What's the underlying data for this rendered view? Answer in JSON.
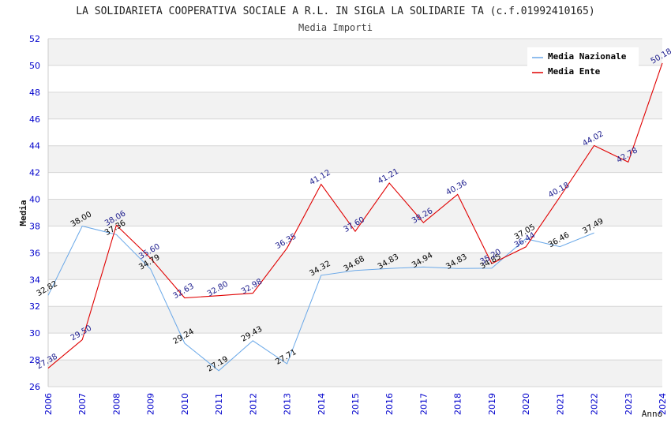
{
  "chart_data": {
    "type": "line",
    "title": "LA SOLIDARIETA COOPERATIVA SOCIALE A R.L. IN SIGLA LA SOLIDARIE TA (c.f.01992410165)",
    "subtitle": "Media Importi",
    "xlabel": "Anno",
    "ylabel": "Media",
    "ylim": [
      26,
      52
    ],
    "yticks": [
      26,
      28,
      30,
      32,
      34,
      36,
      38,
      40,
      42,
      44,
      46,
      48,
      50,
      52
    ],
    "categories": [
      "2006",
      "2007",
      "2008",
      "2009",
      "2010",
      "2011",
      "2012",
      "2013",
      "2014",
      "2015",
      "2016",
      "2017",
      "2018",
      "2019",
      "2020",
      "2021",
      "2022",
      "2023",
      "2024"
    ],
    "legend_position": "top-right",
    "series": [
      {
        "name": "Media Nazionale",
        "color": "#6aa8e8",
        "values": [
          32.82,
          38.0,
          37.36,
          34.79,
          29.24,
          27.19,
          29.43,
          27.71,
          34.32,
          34.68,
          34.83,
          34.94,
          34.83,
          34.85,
          37.05,
          36.46,
          37.49,
          null,
          null
        ],
        "labels": [
          "32.82",
          "38.00",
          "37.36",
          "34.79",
          "29.24",
          "27.19",
          "29.43",
          "27.71",
          "34.32",
          "34.68",
          "34.83",
          "34.94",
          "34.83",
          "34.85",
          "37.05",
          "36.46",
          "37.49",
          "",
          ""
        ]
      },
      {
        "name": "Media Ente",
        "color": "#e00000",
        "values": [
          27.38,
          29.5,
          38.06,
          35.6,
          32.63,
          32.8,
          32.98,
          36.35,
          41.12,
          37.6,
          41.21,
          38.26,
          40.36,
          35.2,
          36.44,
          40.18,
          44.02,
          42.78,
          50.18
        ],
        "labels": [
          "27.38",
          "29.50",
          "38.06",
          "35.60",
          "32.63",
          "32.80",
          "32.98",
          "36.35",
          "41.12",
          "37.60",
          "41.21",
          "38.26",
          "40.36",
          "35.20",
          "36.44",
          "40.18",
          "44.02",
          "42.78",
          "50.18"
        ]
      }
    ]
  }
}
